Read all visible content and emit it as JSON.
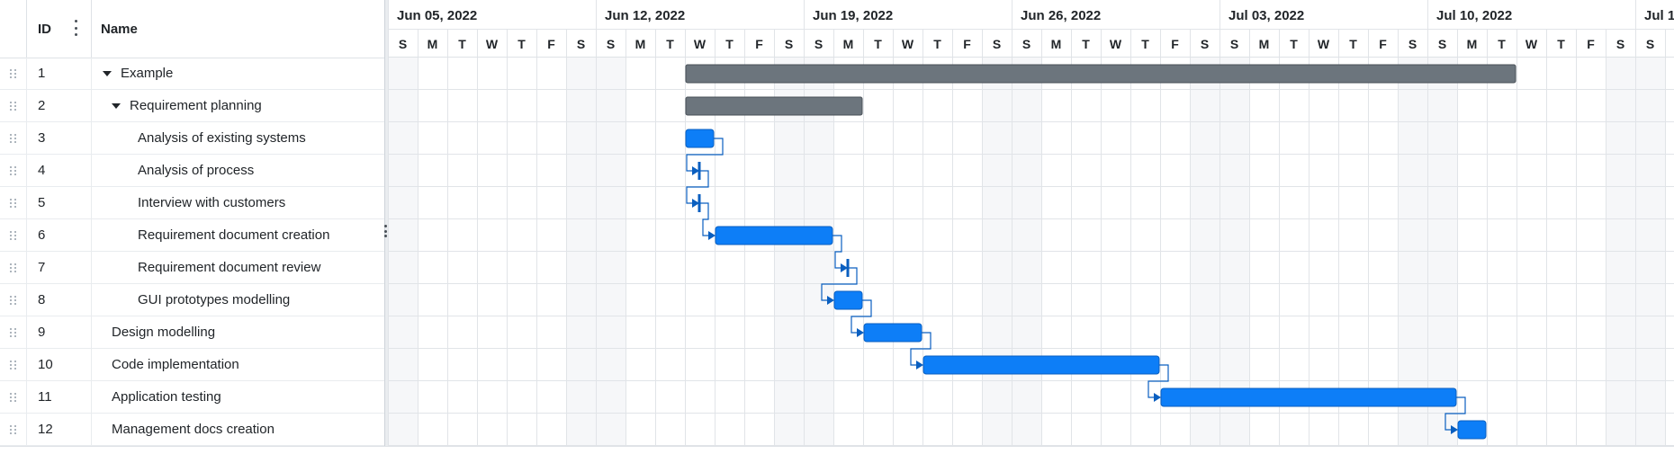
{
  "grid": {
    "headers": {
      "id": "ID",
      "name": "Name"
    },
    "rows": [
      {
        "id": "1",
        "name": "Example",
        "level": 0,
        "expanded": true
      },
      {
        "id": "2",
        "name": "Requirement planning",
        "level": 1,
        "expanded": true
      },
      {
        "id": "3",
        "name": "Analysis of existing systems",
        "level": 2
      },
      {
        "id": "4",
        "name": "Analysis of process",
        "level": 2
      },
      {
        "id": "5",
        "name": "Interview with customers",
        "level": 2
      },
      {
        "id": "6",
        "name": "Requirement document creation",
        "level": 2
      },
      {
        "id": "7",
        "name": "Requirement document review",
        "level": 2
      },
      {
        "id": "8",
        "name": "GUI prototypes modelling",
        "level": 2
      },
      {
        "id": "9",
        "name": "Design modelling",
        "level": 1
      },
      {
        "id": "10",
        "name": "Code implementation",
        "level": 1
      },
      {
        "id": "11",
        "name": "Application testing",
        "level": 1
      },
      {
        "id": "12",
        "name": "Management docs creation",
        "level": 1
      }
    ]
  },
  "timeline": {
    "weeks": [
      "Jun 05, 2022",
      "Jun 12, 2022",
      "Jun 19, 2022",
      "Jun 26, 2022",
      "Jul 03, 2022",
      "Jul 10, 2022",
      "Jul 1"
    ],
    "day_letters": [
      "S",
      "M",
      "T",
      "W",
      "T",
      "F",
      "S"
    ],
    "start_date": "2022-06-05",
    "tasks": [
      {
        "id": "1",
        "type": "summary",
        "start": "2022-06-15",
        "end": "2022-07-12"
      },
      {
        "id": "2",
        "type": "summary",
        "start": "2022-06-15",
        "end": "2022-06-20"
      },
      {
        "id": "3",
        "type": "task",
        "start": "2022-06-15",
        "end": "2022-06-15"
      },
      {
        "id": "4",
        "type": "milestone",
        "start": "2022-06-15"
      },
      {
        "id": "5",
        "type": "milestone",
        "start": "2022-06-15"
      },
      {
        "id": "6",
        "type": "task",
        "start": "2022-06-16",
        "end": "2022-06-19"
      },
      {
        "id": "7",
        "type": "milestone",
        "start": "2022-06-20"
      },
      {
        "id": "8",
        "type": "task",
        "start": "2022-06-20",
        "end": "2022-06-20"
      },
      {
        "id": "9",
        "type": "task",
        "start": "2022-06-21",
        "end": "2022-06-22"
      },
      {
        "id": "10",
        "type": "task",
        "start": "2022-06-23",
        "end": "2022-06-30"
      },
      {
        "id": "11",
        "type": "task",
        "start": "2022-07-01",
        "end": "2022-07-10"
      },
      {
        "id": "12",
        "type": "task",
        "start": "2022-07-11",
        "end": "2022-07-11"
      }
    ],
    "links": [
      [
        "3",
        "4"
      ],
      [
        "4",
        "5"
      ],
      [
        "5",
        "6"
      ],
      [
        "6",
        "7"
      ],
      [
        "7",
        "8"
      ],
      [
        "8",
        "9"
      ],
      [
        "9",
        "10"
      ],
      [
        "10",
        "11"
      ],
      [
        "11",
        "12"
      ]
    ]
  },
  "colors": {
    "task_bar": "#0d7ef7",
    "task_border": "#0a5fc0",
    "summary_bar": "#6c757d",
    "summary_border": "#495057",
    "link": "#0a5fc0",
    "weekend_bg": "#f6f7f9",
    "grid_line": "#e1e4e8"
  }
}
